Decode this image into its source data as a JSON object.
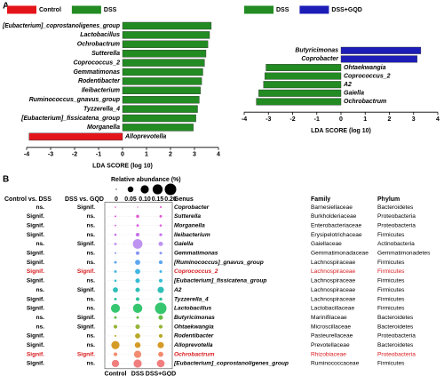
{
  "panels": [
    "A",
    "B"
  ],
  "chart_data": [
    {
      "type": "bar",
      "orientation": "horizontal",
      "categories": [
        "[Eubacterium]_coprostanoligenes_group",
        "Lactobacillus",
        "Ochrobactrum",
        "Sutterella",
        "Coprococcus_2",
        "Gemmatimonas",
        "Rodentibacter",
        "Ileibacterium",
        "Ruminococcus_gnavus_group",
        "Tyzzerella_4",
        "[Eubacterium]_fissicatena_group",
        "Morganella",
        "Alloprevotella"
      ],
      "series": [
        {
          "name": "Control",
          "color": "#e4141b",
          "values": [
            null,
            null,
            null,
            null,
            null,
            null,
            null,
            null,
            null,
            null,
            null,
            null,
            -3.9
          ]
        },
        {
          "name": "DSS",
          "color": "#228b22",
          "values": [
            3.7,
            3.63,
            3.56,
            3.48,
            3.42,
            3.35,
            3.3,
            3.25,
            3.2,
            3.13,
            3.06,
            2.95,
            null
          ]
        }
      ],
      "xlabel": "LDA SCORE (log 10)",
      "xlim": [
        -4,
        4
      ],
      "xticks": [
        -4,
        -3,
        -2,
        -1,
        0,
        1,
        2,
        3,
        4
      ]
    },
    {
      "type": "bar",
      "orientation": "horizontal",
      "categories": [
        "Butyricimonas",
        "Coprobacter",
        "Ohtaekwangia",
        "Coprococcus_2",
        "A2",
        "Gaiella",
        "Ochrobactrum"
      ],
      "series": [
        {
          "name": "DSS",
          "color": "#228b22",
          "values": [
            null,
            null,
            -3.1,
            -3.15,
            -3.2,
            -3.4,
            -3.5
          ]
        },
        {
          "name": "DSS+GQD",
          "color": "#1d1db8",
          "values": [
            3.3,
            3.15,
            null,
            null,
            null,
            null,
            null
          ]
        }
      ],
      "xlabel": "LDA SCORE (log 10)",
      "xlim": [
        -4,
        4
      ],
      "xticks": [
        -4,
        -3,
        -2,
        -1,
        0,
        1,
        2,
        3,
        4
      ]
    },
    {
      "type": "dotplot",
      "size_title": "Relative abundance (%)",
      "size_lim": [
        0,
        0.2
      ],
      "size_ticks": [
        0,
        0.05,
        {
          "value": 0.1,
          "label": "0.10"
        },
        0.15,
        {
          "value": 0.2,
          "label": "0.20"
        }
      ],
      "groups": [
        "Control",
        "DSS",
        "DSS+GQD"
      ],
      "comparison_headers": [
        "Control vs. DSS",
        "DSS vs. GQD"
      ],
      "label_headers": [
        "Genus",
        "Family",
        "Phylum"
      ],
      "highlight_color": "#d7191c",
      "rows": [
        {
          "comparisons": [
            "ns.",
            "Signif."
          ],
          "genus": "Coprobacter",
          "family": "Barnesiellaceae",
          "phylum": "Bacteroidetes",
          "color": "#e040c8",
          "values": [
            0.003,
            0.002,
            0.005
          ],
          "highlight": false
        },
        {
          "comparisons": [
            "Signif.",
            "ns."
          ],
          "genus": "Sutterella",
          "family": "Burkholderiaceae",
          "phylum": "Proteobacteria",
          "color": "#e048d0",
          "values": [
            0.005,
            0.015,
            0.01
          ],
          "highlight": false
        },
        {
          "comparisons": [
            "Signif.",
            "ns."
          ],
          "genus": "Morganella",
          "family": "Enterobacteriaceae",
          "phylum": "Proteobacteria",
          "color": "#d850e0",
          "values": [
            0.004,
            0.01,
            0.008
          ],
          "highlight": false
        },
        {
          "comparisons": [
            "Signif.",
            "ns."
          ],
          "genus": "Ileibacterium",
          "family": "Erysipelotrichaceae",
          "phylum": "Firmicutes",
          "color": "#c060e8",
          "values": [
            0.008,
            0.02,
            0.012
          ],
          "highlight": false
        },
        {
          "comparisons": [
            "ns.",
            "Signif."
          ],
          "genus": "Gaiella",
          "family": "Gaiellaceae",
          "phylum": "Actinobacteria",
          "color": "#b888f0",
          "values": [
            0.01,
            0.14,
            0.03
          ],
          "highlight": false
        },
        {
          "comparisons": [
            "Signif.",
            "ns."
          ],
          "genus": "Gemmatimonas",
          "family": "Gemmatimonadaceae",
          "phylum": "Gemmatimonadetes",
          "color": "#7c8cf0",
          "values": [
            0.005,
            0.02,
            0.01
          ],
          "highlight": false
        },
        {
          "comparisons": [
            "Signif.",
            "ns."
          ],
          "genus": "[Ruminococcus]_gnavus_group",
          "family": "Lachnospiraceae",
          "phylum": "Firmicutes",
          "color": "#4a9cf0",
          "values": [
            0.01,
            0.04,
            0.02
          ],
          "highlight": false
        },
        {
          "comparisons": [
            "Signif.",
            "Signif."
          ],
          "genus": "Coprococcus_2",
          "family": "Lachnospiraceae",
          "phylum": "Firmicutes",
          "color": "#30aee0",
          "values": [
            0.01,
            0.04,
            0.01
          ],
          "highlight": true
        },
        {
          "comparisons": [
            "Signif.",
            "ns."
          ],
          "genus": "[Eubacterium]_fissicatena_group",
          "family": "Lachnospiraceae",
          "phylum": "Firmicutes",
          "color": "#20b6d0",
          "values": [
            0.008,
            0.03,
            0.02
          ],
          "highlight": false
        },
        {
          "comparisons": [
            "ns.",
            "Signif."
          ],
          "genus": "A2",
          "family": "Lachnospiraceae",
          "phylum": "Firmicutes",
          "color": "#18b8b0",
          "values": [
            0.04,
            0.03,
            0.06
          ],
          "highlight": false
        },
        {
          "comparisons": [
            "Signif.",
            "ns."
          ],
          "genus": "Tyzzerella_4",
          "family": "Lachnospiraceae",
          "phylum": "Firmicutes",
          "color": "#18ba90",
          "values": [
            0.01,
            0.02,
            0.015
          ],
          "highlight": false
        },
        {
          "comparisons": [
            "Signif.",
            "ns."
          ],
          "genus": "Lactobacillus",
          "family": "Lactobacillaceae",
          "phylum": "Firmicutes",
          "color": "#20c060",
          "values": [
            0.12,
            0.13,
            0.2
          ],
          "highlight": false
        },
        {
          "comparisons": [
            "ns.",
            "Signif."
          ],
          "genus": "Butyricimonas",
          "family": "Marinifilaceae",
          "phylum": "Bacteroidetes",
          "color": "#58b430",
          "values": [
            0.01,
            0.01,
            0.03
          ],
          "highlight": false
        },
        {
          "comparisons": [
            "ns.",
            "Signif."
          ],
          "genus": "Ohtaekwangia",
          "family": "Microscillaceae",
          "phylum": "Bacteroidetes",
          "color": "#8aac20",
          "values": [
            0.02,
            0.03,
            0.02
          ],
          "highlight": false
        },
        {
          "comparisons": [
            "Signif.",
            "ns."
          ],
          "genus": "Rodentibacter",
          "family": "Pasteurellaceae",
          "phylum": "Proteobacteria",
          "color": "#b0a010",
          "values": [
            0.005,
            0.04,
            0.02
          ],
          "highlight": false
        },
        {
          "comparisons": [
            "Signif.",
            "ns."
          ],
          "genus": "Alloprevotella",
          "family": "Prevotellaceae",
          "phylum": "Bacteroidetes",
          "color": "#d09010",
          "values": [
            0.1,
            0.05,
            0.06
          ],
          "highlight": false
        },
        {
          "comparisons": [
            "Signif.",
            "Signif."
          ],
          "genus": "Ochrobactrum",
          "family": "Rhizobiaceae",
          "phylum": "Proteobacteria",
          "color": "#f08060",
          "values": [
            0.02,
            0.08,
            0.04
          ],
          "highlight": true
        },
        {
          "comparisons": [
            "Signif.",
            "ns."
          ],
          "genus": "[Eubacterium]_coprostanoligenes_group",
          "family": "Ruminococcaceae",
          "phylum": "Firmicutes",
          "color": "#f07070",
          "values": [
            0.08,
            0.1,
            0.09
          ],
          "highlight": false
        }
      ]
    }
  ]
}
